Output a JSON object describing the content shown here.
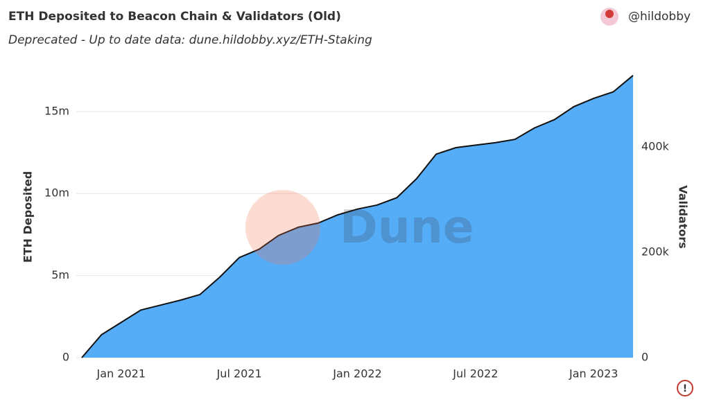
{
  "header": {
    "title": "ETH Deposited to Beacon Chain & Validators (Old)",
    "subtitle": "Deprecated - Up to date data: dune.hildobby.xyz/ETH-Staking",
    "author": "@hildobby"
  },
  "chart_data": {
    "type": "area",
    "watermark": "Dune",
    "y_label": "ETH Deposited",
    "y2_label": "Validators",
    "color": "#55acf7",
    "line_color": "#111111",
    "x": [
      "2020-11",
      "2020-12",
      "2021-01",
      "2021-02",
      "2021-03",
      "2021-04",
      "2021-05",
      "2021-06",
      "2021-07",
      "2021-08",
      "2021-09",
      "2021-10",
      "2021-11",
      "2021-12",
      "2022-01",
      "2022-02",
      "2022-03",
      "2022-04",
      "2022-05",
      "2022-06",
      "2022-07",
      "2022-08",
      "2022-09",
      "2022-10",
      "2022-11",
      "2022-12",
      "2023-01",
      "2023-02",
      "2023-03"
    ],
    "values": [
      0,
      1400000,
      2150000,
      2900000,
      3200000,
      3500000,
      3850000,
      4900000,
      6100000,
      6600000,
      7450000,
      7950000,
      8200000,
      8700000,
      9050000,
      9300000,
      9750000,
      10900000,
      12400000,
      12800000,
      12950000,
      13100000,
      13300000,
      14000000,
      14500000,
      15300000,
      15800000,
      16200000,
      17200000
    ],
    "xlim": [
      "2020-11",
      "2023-03"
    ],
    "xticks": [
      {
        "value": "2021-01",
        "label": "Jan 2021"
      },
      {
        "value": "2021-07",
        "label": "Jul 2021"
      },
      {
        "value": "2022-01",
        "label": "Jan 2022"
      },
      {
        "value": "2022-07",
        "label": "Jul 2022"
      },
      {
        "value": "2023-01",
        "label": "Jan 2023"
      }
    ],
    "ylim": [
      0,
      17360000
    ],
    "yticks": [
      0,
      {
        "value": 5000000,
        "label": "5m"
      },
      {
        "value": 10000000,
        "label": "10m"
      },
      {
        "value": 15000000,
        "label": "15m"
      }
    ],
    "y2lim": [
      0,
      540800
    ],
    "y2ticks": [
      0,
      {
        "value": 200000,
        "label": "200k"
      },
      {
        "value": 400000,
        "label": "400k"
      }
    ],
    "grid": true
  }
}
